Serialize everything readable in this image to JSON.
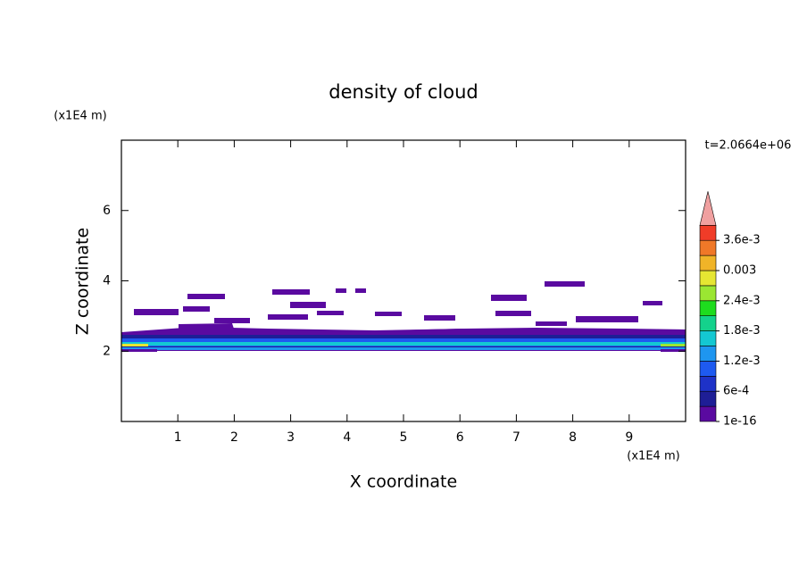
{
  "chart_data": {
    "type": "contour",
    "title": "density of cloud",
    "x_label": "X coordinate",
    "y_label": "Z coordinate",
    "x_unit": "(x1E4 m)",
    "y_unit": "(x1E4 m)",
    "time_label": "t=2.0664e+06",
    "xlim": [
      0,
      10
    ],
    "xticks": [
      1,
      2,
      3,
      4,
      5,
      6,
      7,
      8,
      9
    ],
    "ylim": [
      0,
      8
    ],
    "yticks": [
      2,
      4,
      6
    ],
    "colorbar": {
      "colors": [
        "#5a0aa0",
        "#1e1e96",
        "#1e32c8",
        "#1e5af0",
        "#1e96f0",
        "#14c8d2",
        "#14d28c",
        "#1edc1e",
        "#9be632",
        "#e6e632",
        "#f0b428",
        "#f07828",
        "#f03c28"
      ],
      "extend_color": "#f0a0a0",
      "ticks": [
        1e-16,
        {
          "value": 0.0006,
          "label": "6e-4"
        },
        {
          "value": 0.0012,
          "label": "1.2e-3"
        },
        {
          "value": 0.0018,
          "label": "1.8e-3"
        },
        {
          "value": 0.0024,
          "label": "2.4e-3"
        },
        0.003,
        {
          "value": 0.0036,
          "label": "3.6e-3"
        }
      ]
    }
  }
}
